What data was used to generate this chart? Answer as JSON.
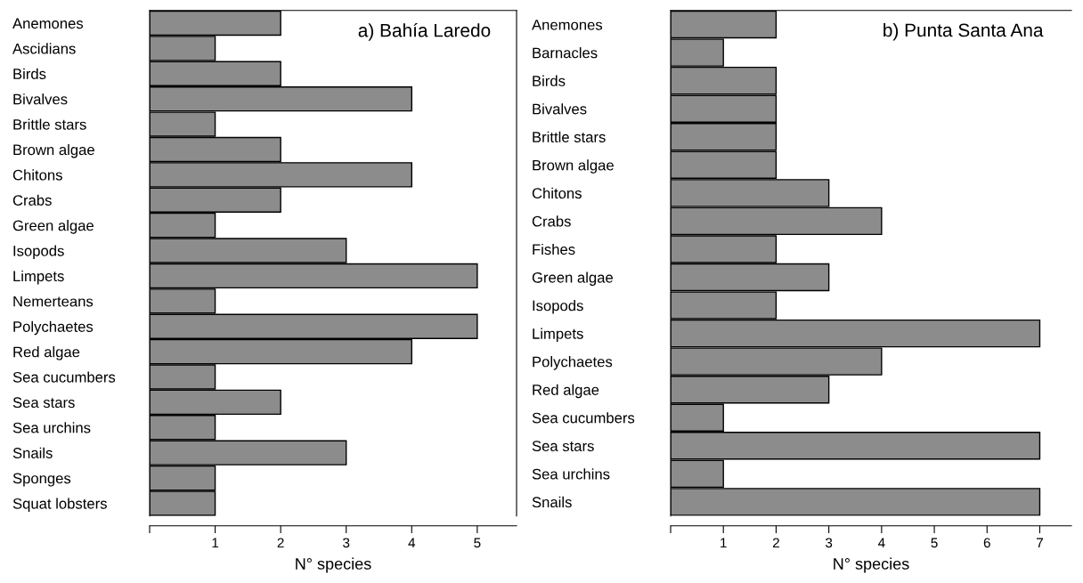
{
  "chart_data": [
    {
      "type": "bar",
      "orientation": "horizontal",
      "title": "a) Bahía Laredo",
      "xlabel": "N° species",
      "color": "#8c8c8c",
      "categories": [
        "Anemones",
        "Ascidians",
        "Birds",
        "Bivalves",
        "Brittle stars",
        "Brown algae",
        "Chitons",
        "Crabs",
        "Green algae",
        "Isopods",
        "Limpets",
        "Nemerteans",
        "Polychaetes",
        "Red algae",
        "Sea cucumbers",
        "Sea stars",
        "Sea urchins",
        "Snails",
        "Sponges",
        "Squat lobsters"
      ],
      "values": [
        2,
        1,
        2,
        4,
        1,
        2,
        4,
        2,
        1,
        3,
        5,
        1,
        5,
        4,
        1,
        2,
        1,
        3,
        1,
        1
      ],
      "xlim": [
        0,
        5.6
      ],
      "xticks": [
        {
          "value": 0,
          "label": null
        },
        1,
        2,
        3,
        4,
        5
      ],
      "grid": false,
      "legend": false
    },
    {
      "type": "bar",
      "orientation": "horizontal",
      "title": "b) Punta Santa Ana",
      "xlabel": "N° species",
      "color": "#8c8c8c",
      "categories": [
        "Anemones",
        "Barnacles",
        "Birds",
        "Bivalves",
        "Brittle stars",
        "Brown algae",
        "Chitons",
        "Crabs",
        "Fishes",
        "Green algae",
        "Isopods",
        "Limpets",
        "Polychaetes",
        "Red algae",
        "Sea cucumbers",
        "Sea stars",
        "Sea urchins",
        "Snails"
      ],
      "values": [
        2,
        1,
        2,
        2,
        2,
        2,
        3,
        4,
        2,
        3,
        2,
        7,
        4,
        3,
        1,
        7,
        1,
        7
      ],
      "xlim": [
        0,
        7.6
      ],
      "xticks": [
        {
          "value": 0,
          "label": null
        },
        1,
        2,
        3,
        4,
        5,
        6,
        7
      ],
      "grid": false,
      "legend": false
    }
  ]
}
